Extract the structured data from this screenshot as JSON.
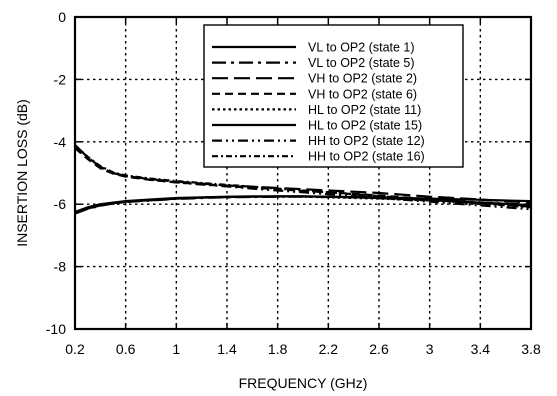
{
  "chart_data": {
    "type": "line",
    "title": "",
    "xlabel": "FREQUENCY (GHz)",
    "ylabel": "INSERTION LOSS  (dB)",
    "xlim": [
      0.2,
      3.8
    ],
    "ylim": [
      -10,
      0
    ],
    "xticks": [
      "0.2",
      "0.6",
      "1",
      "1.4",
      "1.8",
      "2.2",
      "2.6",
      "3",
      "3.4",
      "3.8"
    ],
    "yticks": [
      "0",
      "-2",
      "-4",
      "-6",
      "-8",
      "-10"
    ],
    "grid": true,
    "legend_position": "top-right",
    "x": [
      0.2,
      0.3,
      0.4,
      0.5,
      0.6,
      0.8,
      1.0,
      1.2,
      1.4,
      1.6,
      1.8,
      2.0,
      2.2,
      2.4,
      2.6,
      2.8,
      3.0,
      3.2,
      3.4,
      3.6,
      3.8
    ],
    "series": [
      {
        "name": "VL to OP2 (state 1)",
        "dash": "solid",
        "values": [
          -6.25,
          -6.1,
          -6.0,
          -5.95,
          -5.9,
          -5.85,
          -5.8,
          -5.78,
          -5.76,
          -5.75,
          -5.75,
          -5.75,
          -5.76,
          -5.77,
          -5.78,
          -5.8,
          -5.82,
          -5.84,
          -5.86,
          -5.88,
          -5.9
        ]
      },
      {
        "name": "VL to OP2 (state 5)",
        "dash": "dashdot",
        "values": [
          -6.3,
          -6.15,
          -6.05,
          -5.98,
          -5.93,
          -5.88,
          -5.83,
          -5.8,
          -5.78,
          -5.77,
          -5.76,
          -5.76,
          -5.77,
          -5.78,
          -5.8,
          -5.83,
          -5.86,
          -5.9,
          -5.94,
          -5.98,
          -6.02
        ]
      },
      {
        "name": "VH to OP2 (state 2)",
        "dash": "longdash",
        "values": [
          -4.1,
          -4.5,
          -4.8,
          -5.0,
          -5.1,
          -5.2,
          -5.28,
          -5.34,
          -5.4,
          -5.44,
          -5.48,
          -5.52,
          -5.56,
          -5.6,
          -5.64,
          -5.7,
          -5.76,
          -5.8,
          -5.85,
          -5.9,
          -5.95
        ]
      },
      {
        "name": "VH to OP2 (state 6)",
        "dash": "dashed",
        "values": [
          -4.2,
          -4.55,
          -4.85,
          -5.02,
          -5.12,
          -5.22,
          -5.3,
          -5.36,
          -5.42,
          -5.47,
          -5.52,
          -5.57,
          -5.62,
          -5.67,
          -5.72,
          -5.78,
          -5.84,
          -5.9,
          -5.96,
          -6.02,
          -6.08
        ]
      },
      {
        "name": "HL to OP2 (state 11)",
        "dash": "dotted",
        "values": [
          -6.25,
          -6.12,
          -6.02,
          -5.97,
          -5.92,
          -5.87,
          -5.82,
          -5.79,
          -5.77,
          -5.76,
          -5.76,
          -5.76,
          -5.78,
          -5.8,
          -5.82,
          -5.85,
          -5.88,
          -5.92,
          -5.96,
          -6.0,
          -6.05
        ]
      },
      {
        "name": "HL to OP2 (state 15)",
        "dash": "solid",
        "values": [
          -6.28,
          -6.14,
          -6.04,
          -5.97,
          -5.92,
          -5.87,
          -5.82,
          -5.79,
          -5.77,
          -5.76,
          -5.75,
          -5.75,
          -5.76,
          -5.78,
          -5.8,
          -5.83,
          -5.87,
          -5.91,
          -5.95,
          -5.99,
          -6.03
        ]
      },
      {
        "name": "HH to OP2 (state 12)",
        "dash": "dashdotdot",
        "values": [
          -4.15,
          -4.5,
          -4.82,
          -5.0,
          -5.1,
          -5.22,
          -5.3,
          -5.37,
          -5.43,
          -5.5,
          -5.56,
          -5.62,
          -5.68,
          -5.74,
          -5.8,
          -5.86,
          -5.92,
          -5.98,
          -6.04,
          -6.1,
          -6.16
        ]
      },
      {
        "name": "HH to OP2 (state 16)",
        "dash": "dashdot2",
        "values": [
          -4.12,
          -4.48,
          -4.78,
          -4.98,
          -5.08,
          -5.18,
          -5.26,
          -5.32,
          -5.38,
          -5.44,
          -5.5,
          -5.56,
          -5.62,
          -5.68,
          -5.74,
          -5.8,
          -5.86,
          -5.92,
          -5.98,
          -6.04,
          -6.1
        ]
      }
    ]
  }
}
